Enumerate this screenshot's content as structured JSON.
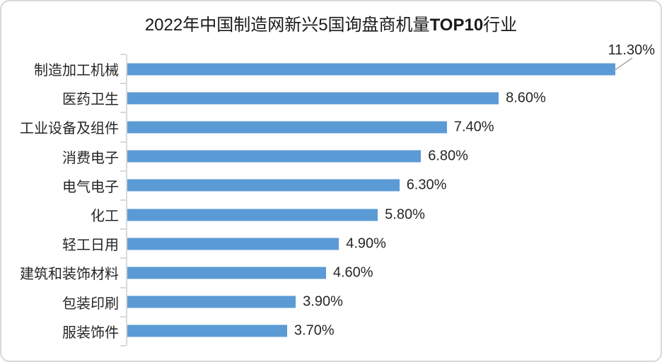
{
  "chart_data": {
    "type": "bar",
    "orientation": "horizontal",
    "title": "2022年中国制造网新兴5国询盘商机量TOP10行业",
    "title_parts": {
      "prefix": "2022年中国制造网新兴5国询盘商机量",
      "strong": "TOP10",
      "suffix": "行业"
    },
    "categories": [
      "制造加工机械",
      "医药卫生",
      "工业设备及组件",
      "消费电子",
      "电气电子",
      "化工",
      "轻工日用",
      "建筑和装饰材料",
      "包装印刷",
      "服装饰件"
    ],
    "values": [
      11.3,
      8.6,
      7.4,
      6.8,
      6.3,
      5.8,
      4.9,
      4.6,
      3.9,
      3.7
    ],
    "value_labels": [
      "11.30%",
      "8.60%",
      "7.40%",
      "6.80%",
      "6.30%",
      "5.80%",
      "4.90%",
      "4.60%",
      "3.90%",
      "3.70%"
    ],
    "xlabel": "",
    "ylabel": "",
    "xlim": [
      0,
      12
    ],
    "grid": false,
    "legend": false,
    "callout_index": 0,
    "colors": {
      "bar": "#5B9BD5",
      "axis": "#D9D9D9",
      "text": "#262626",
      "title_text": "#1A1A1A",
      "leader_line": "#A6A6A6",
      "background": "#FFFFFF",
      "frame_border": "#D9D9D9"
    }
  }
}
